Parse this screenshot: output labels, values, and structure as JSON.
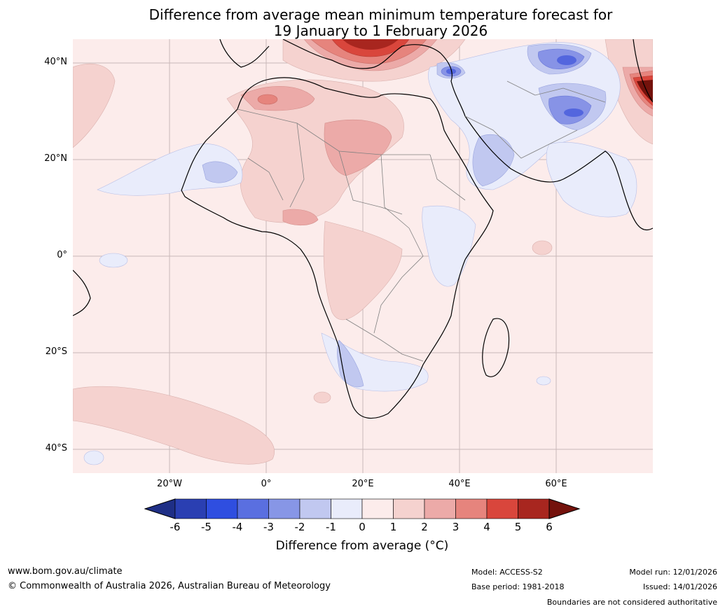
{
  "title": {
    "line1": "Difference from average mean minimum temperature forecast for",
    "line2": "19 January to 1 February 2026"
  },
  "map": {
    "lat_labels": [
      "40°N",
      "20°N",
      "0°",
      "20°S",
      "40°S"
    ],
    "lon_labels": [
      "20°W",
      "0°",
      "20°E",
      "40°E",
      "60°E"
    ],
    "colors": {
      "ocean_default": "#fceceb",
      "warm_1_2": "#f5d2cf",
      "warm_2_3": "#ecaaa8",
      "warm_3_4": "#e6847d",
      "warm_4_5": "#d9463c",
      "warm_5_6": "#a8261f",
      "warm_gt6": "#74120c",
      "cool_0_m1": "#e9ecfb",
      "cool_m1_m2": "#c1c8f0",
      "cool_m2_m3": "#8793e6",
      "cool_m3_m4": "#5366de",
      "coastline": "#000000",
      "border": "#808080"
    }
  },
  "colorbar": {
    "ticks": [
      "-6",
      "-5",
      "-4",
      "-3",
      "-2",
      "-1",
      "0",
      "1",
      "2",
      "3",
      "4",
      "5",
      "6"
    ],
    "colors": [
      "#1f2f86",
      "#2a3fb2",
      "#2f4ee0",
      "#5a6fe0",
      "#8796e6",
      "#c1c8f0",
      "#e9ecfb",
      "#fceceb",
      "#f5d2cf",
      "#ecaaa8",
      "#e6847d",
      "#d9463c",
      "#a8261f",
      "#74120c"
    ],
    "label": "Difference from average (°C)"
  },
  "footer": {
    "website": "www.bom.gov.au/climate",
    "copyright": "© Commonwealth of Australia 2026, Australian Bureau of Meteorology",
    "model": "Model: ACCESS-S2",
    "base_period": "Base period: 1981-2018",
    "model_run": "Model run: 12/01/2026",
    "issued": "Issued: 14/01/2026",
    "boundaries_note": "Boundaries are not considered authoritative"
  }
}
